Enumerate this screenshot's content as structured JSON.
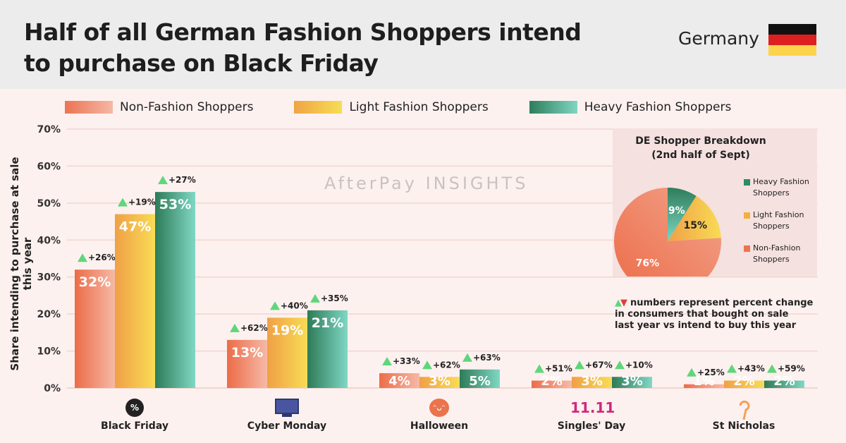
{
  "header": {
    "title_line1": "Half of all German Fashion Shoppers intend",
    "title_line2": "to purchase on Black Friday",
    "country": "Germany"
  },
  "colors": {
    "non": "#ec7352",
    "light": "#f2b043",
    "heavy": "#2e8b63",
    "up": "#5fd67a",
    "down": "#e23c3c"
  },
  "watermark": "AfterPay INSIGHTS",
  "chart_data": {
    "type": "bar",
    "ylabel": "Share intending to purchase at sale this year",
    "ylim": [
      0,
      70
    ],
    "yticks": [
      "0%",
      "10%",
      "20%",
      "30%",
      "40%",
      "50%",
      "60%",
      "70%"
    ],
    "categories": [
      "Black Friday",
      "Cyber Monday",
      "Halloween",
      "Singles' Day",
      "St Nicholas"
    ],
    "legend_position": "top",
    "series": [
      {
        "name": "Non-Fashion Shoppers",
        "values": [
          32,
          13,
          4,
          2,
          1
        ],
        "labels": [
          "32%",
          "13%",
          "4%",
          "2%",
          "1%"
        ],
        "changes": [
          "+26%",
          "+62%",
          "+33%",
          "+51%",
          "+25%"
        ]
      },
      {
        "name": "Light Fashion Shoppers",
        "values": [
          47,
          19,
          3,
          3,
          2
        ],
        "labels": [
          "47%",
          "19%",
          "3%",
          "3%",
          "2%"
        ],
        "changes": [
          "+19%",
          "+40%",
          "+62%",
          "+67%",
          "+43%"
        ]
      },
      {
        "name": "Heavy Fashion Shoppers",
        "values": [
          53,
          21,
          5,
          3,
          2
        ],
        "labels": [
          "53%",
          "21%",
          "5%",
          "3%",
          "2%"
        ],
        "changes": [
          "+27%",
          "+35%",
          "+63%",
          "+10%",
          "+59%"
        ]
      }
    ],
    "pie": {
      "type": "pie",
      "title_line1": "DE Shopper Breakdown",
      "title_line2": "(2nd half of Sept)",
      "slices": [
        {
          "name_line1": "Heavy Fashion",
          "name_line2": "Shoppers",
          "value": 9,
          "label": "9%"
        },
        {
          "name_line1": "Light Fashion",
          "name_line2": "Shoppers",
          "value": 15,
          "label": "15%"
        },
        {
          "name_line1": "Non-Fashion",
          "name_line2": "Shoppers",
          "value": 76,
          "label": "76%"
        }
      ]
    },
    "note_lines": [
      "numbers represent percent change",
      "in consumers that bought on sale",
      "last year vs intend to buy this year"
    ]
  },
  "icons": {
    "black_friday": "%",
    "singles_day": "11.11"
  }
}
